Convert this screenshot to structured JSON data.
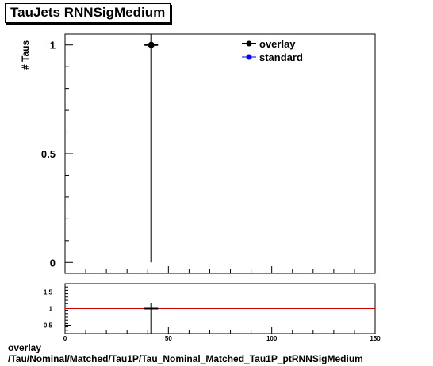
{
  "title": "TauJets RNNSigMedium",
  "footer": {
    "line1": "overlay",
    "line2": "/Tau/Nominal/Matched/Tau1P/Tau_Nominal_Matched_Tau1P_ptRNNSigMedium"
  },
  "chart_data": [
    {
      "type": "scatter",
      "ylabel": "# Taus",
      "xlim": [
        0,
        150
      ],
      "ylim": [
        -0.05,
        1.05
      ],
      "xticks": [
        "0",
        "50",
        "100",
        "150"
      ],
      "yticks": [
        "0",
        "0.5",
        "1"
      ],
      "legend": {
        "placement": "top-right",
        "entries": [
          "overlay",
          "standard"
        ]
      },
      "series": [
        {
          "name": "overlay",
          "color": "#000000",
          "points": [
            {
              "x": 41.7,
              "y": 1.0,
              "xerr": 3.3,
              "yerr": 1.0
            }
          ]
        },
        {
          "name": "standard",
          "color": "#0000ff",
          "points": []
        }
      ]
    },
    {
      "type": "line",
      "xlim": [
        0,
        150
      ],
      "ylim": [
        0.25,
        1.75
      ],
      "yticks": [
        "0.5",
        "1",
        "1.5"
      ],
      "xticks": [
        "0",
        "50",
        "100",
        "150"
      ],
      "reference_line": {
        "y": 1,
        "color": "#cc0000"
      },
      "points": [
        {
          "x": 41.7,
          "y": 1.0,
          "xerr": 3.3,
          "yerr": 1.0
        }
      ]
    }
  ]
}
